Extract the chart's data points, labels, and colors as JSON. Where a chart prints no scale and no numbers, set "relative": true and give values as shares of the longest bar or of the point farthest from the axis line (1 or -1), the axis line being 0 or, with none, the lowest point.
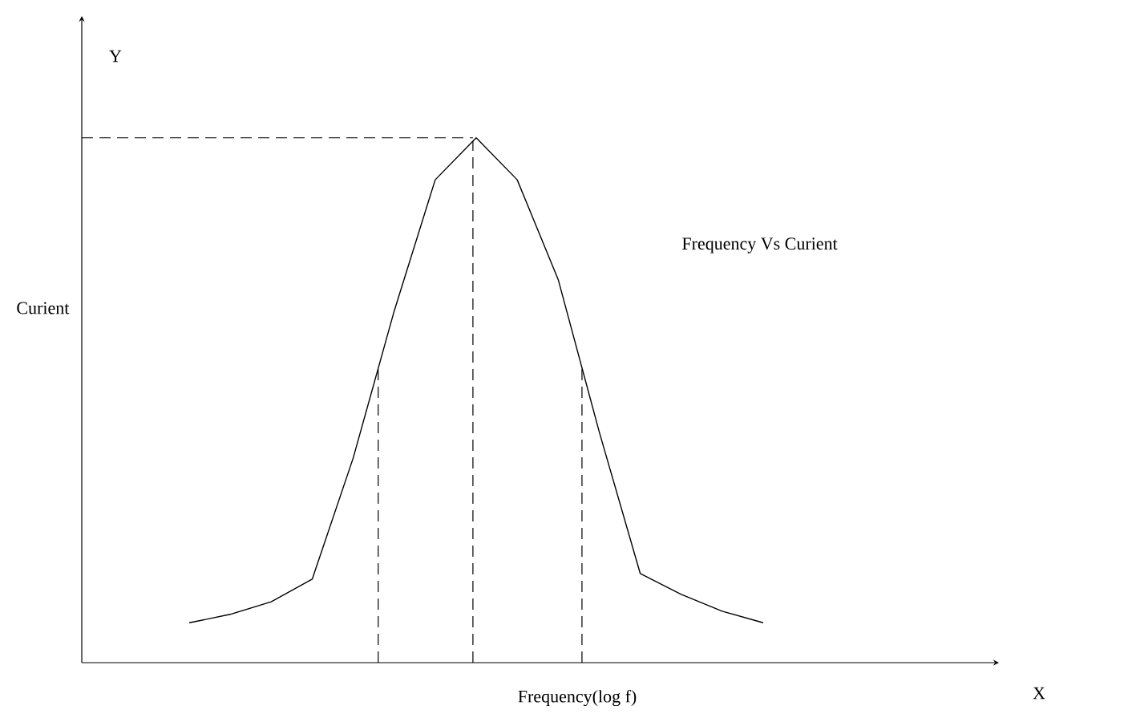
{
  "chart_data": {
    "type": "line",
    "relative": true,
    "xlabel": "Frequency(log f)",
    "annotations": [
      "Frequency Vs Curient",
      "Y",
      "X",
      "Curient"
    ],
    "categories": [
      null,
      null,
      null,
      null,
      null,
      null,
      null,
      null,
      null,
      null,
      null,
      null,
      null,
      null,
      null
    ],
    "series": [
      {
        "color": "#000000",
        "values": [
          0.076,
          0.092,
          0.116,
          0.159,
          0.39,
          0.67,
          0.92,
          1.0,
          0.92,
          0.73,
          0.44,
          0.17,
          0.13,
          0.098,
          0.076
        ]
      }
    ],
    "ref_lines": [
      {
        "axis": "y",
        "value": 1.0,
        "line_style": "dashed"
      }
    ],
    "marker": "none",
    "line_style": "solid"
  }
}
